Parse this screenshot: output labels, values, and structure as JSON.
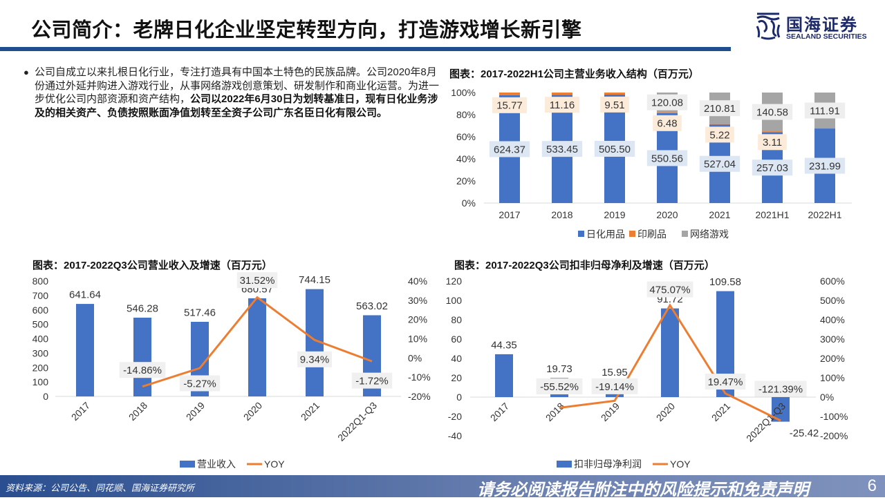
{
  "header": {
    "title": "公司简介：老牌日化企业坚定转型方向，打造游戏增长新引擎",
    "logo_cn": "国海证券",
    "logo_en": "SEALAND SECURITIES"
  },
  "intro": {
    "normal": "公司自成立以来扎根日化行业，专注打造具有中国本土特色的民族品牌。公司2020年8月份通过外延并购进入游戏行业，从事网络游戏创意策划、研发制作和商业化运营。为进一步优化公司内部资源和资产结构，",
    "bold": "公司以2022年6月30日为划转基准日，现有日化业务涉及的相关资产、负债按照账面净值划转至全资子公司广东名臣日化有限公司。"
  },
  "footer": {
    "source": "资料来源：公司公告、同花顺、国海证券研究所",
    "disclaimer": "请务必阅读报告附注中的风险提示和免责声明",
    "page": "6"
  },
  "colors": {
    "blue": "#4472c4",
    "orange": "#ed7d31",
    "gray": "#a5a5a5",
    "brand": "#1f4e8c"
  },
  "chart_data": [
    {
      "type": "bar",
      "stacked": "percent",
      "title": "图表：2017-2022H1公司主营业务收入结构（百万元）",
      "categories": [
        "2017",
        "2018",
        "2019",
        "2020",
        "2021",
        "2021H1",
        "2022H1"
      ],
      "series": [
        {
          "name": "日化用品",
          "values": [
            624.37,
            533.45,
            505.5,
            550.56,
            527.04,
            257.03,
            231.99
          ],
          "color": "#4472c4"
        },
        {
          "name": "印刷品",
          "values": [
            15.77,
            11.16,
            9.51,
            6.48,
            5.22,
            3.11,
            null
          ],
          "color": "#ed7d31"
        },
        {
          "name": "网络游戏",
          "values": [
            null,
            null,
            null,
            120.08,
            210.81,
            140.58,
            111.91
          ],
          "color": "#a5a5a5"
        }
      ],
      "yticks": [
        "0%",
        "20%",
        "40%",
        "60%",
        "80%",
        "100%"
      ],
      "ylim": [
        0,
        100
      ],
      "legend": "bottom"
    },
    {
      "type": "bar+line",
      "title": "图表：2017-2022Q3公司营业收入及增速（百万元）",
      "categories": [
        "2017",
        "2018",
        "2019",
        "2020",
        "2021",
        "2022Q1-Q3"
      ],
      "series": [
        {
          "name": "营业收入",
          "type": "bar",
          "values": [
            641.64,
            546.28,
            517.46,
            680.57,
            744.15,
            563.02
          ],
          "labels": [
            "641.64",
            "546.28",
            "517.46",
            "680.57",
            "744.15",
            "563.02"
          ]
        },
        {
          "name": "YOY",
          "type": "line",
          "axis": "right",
          "values": [
            null,
            -14.86,
            -5.27,
            31.52,
            9.34,
            -1.72
          ],
          "labels": [
            "",
            "-14.86%",
            "-5.27%",
            "31.52%",
            "9.34%",
            "-1.72%"
          ]
        }
      ],
      "yticks": [
        "0",
        "100",
        "200",
        "300",
        "400",
        "500",
        "600",
        "700",
        "800"
      ],
      "ylim": [
        0,
        800
      ],
      "y2ticks": [
        "-20%",
        "-10%",
        "0%",
        "10%",
        "20%",
        "30%",
        "40%"
      ],
      "y2lim": [
        -20,
        40
      ],
      "legend": "bottom"
    },
    {
      "type": "bar+line",
      "title": "图表：2017-2022Q3公司扣非归母净利及增速（百万元）",
      "categories": [
        "2017",
        "2018",
        "2019",
        "2020",
        "2021",
        "2022Q1-Q3"
      ],
      "series": [
        {
          "name": "扣非归母净利润",
          "type": "bar",
          "values": [
            44.35,
            19.73,
            15.95,
            91.72,
            109.58,
            -25.42
          ],
          "labels": [
            "44.35",
            "19.73",
            "15.95",
            "91.72",
            "109.58",
            "-25.42"
          ]
        },
        {
          "name": "YOY",
          "type": "line",
          "axis": "right",
          "values": [
            null,
            -55.52,
            -19.14,
            475.07,
            19.47,
            -121.39
          ],
          "labels": [
            "",
            "-55.52%",
            "-19.14%",
            "475.07%",
            "19.47%",
            "-121.39%"
          ]
        }
      ],
      "yticks": [
        "-40",
        "-20",
        "0",
        "20",
        "40",
        "60",
        "80",
        "100",
        "120"
      ],
      "ylim": [
        -40,
        120
      ],
      "y2ticks": [
        "-200%",
        "-100%",
        "0%",
        "100%",
        "200%",
        "300%",
        "400%",
        "500%",
        "600%"
      ],
      "y2lim": [
        -200,
        600
      ],
      "legend": "bottom"
    }
  ]
}
